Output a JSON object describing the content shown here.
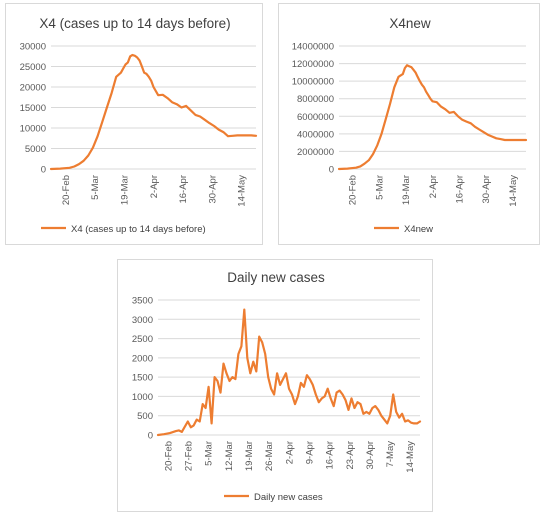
{
  "chart_data": [
    {
      "type": "line",
      "title": "X4 (cases up to 14 days before)",
      "ylim": [
        0,
        30000
      ],
      "yticks": [
        "0",
        "5000",
        "10000",
        "15000",
        "20000",
        "25000",
        "30000"
      ],
      "xtick_labels": [
        "20-Feb",
        "5-Mar",
        "19-Mar",
        "2-Apr",
        "16-Apr",
        "30-Apr",
        "14-May"
      ],
      "xlim": [
        0,
        88
      ],
      "color": "#ED7D31",
      "series": [
        {
          "name": "X4 (cases up to 14 days before)",
          "x": [
            0,
            4,
            8,
            10,
            12,
            14,
            16,
            18,
            20,
            22,
            24,
            26,
            28,
            30,
            31,
            32,
            33,
            34,
            35,
            36,
            37,
            38,
            39,
            40,
            41,
            42,
            43,
            44,
            46,
            48,
            50,
            52,
            54,
            56,
            58,
            60,
            62,
            64,
            66,
            68,
            70,
            72,
            74,
            76,
            78,
            80,
            82,
            84,
            86,
            88
          ],
          "y": [
            0,
            100,
            300,
            600,
            1200,
            2000,
            3300,
            5200,
            8000,
            11500,
            15000,
            18500,
            22500,
            23500,
            24500,
            25500,
            26000,
            27500,
            27800,
            27600,
            27200,
            26500,
            25000,
            23500,
            23200,
            22500,
            21500,
            20000,
            18000,
            18100,
            17300,
            16300,
            15800,
            15000,
            15400,
            14300,
            13200,
            12800,
            12000,
            11200,
            10500,
            9600,
            9000,
            8000,
            8100,
            8200,
            8200,
            8200,
            8200,
            8100
          ]
        }
      ]
    },
    {
      "type": "line",
      "title": "X4new",
      "ylim": [
        0,
        14000000
      ],
      "yticks": [
        "0",
        "2000000",
        "4000000",
        "6000000",
        "8000000",
        "10000000",
        "12000000",
        "14000000"
      ],
      "xtick_labels": [
        "20-Feb",
        "5-Mar",
        "19-Mar",
        "2-Apr",
        "16-Apr",
        "30-Apr",
        "14-May"
      ],
      "xlim": [
        0,
        88
      ],
      "color": "#ED7D31",
      "series": [
        {
          "name": "X4new",
          "x": [
            0,
            4,
            8,
            10,
            12,
            14,
            16,
            18,
            20,
            22,
            24,
            26,
            28,
            30,
            31,
            32,
            33,
            34,
            35,
            36,
            37,
            38,
            39,
            40,
            41,
            42,
            43,
            44,
            46,
            48,
            50,
            52,
            54,
            56,
            58,
            60,
            62,
            64,
            66,
            68,
            70,
            72,
            74,
            76,
            78,
            80,
            82,
            84,
            86,
            88
          ],
          "y": [
            0,
            50000,
            150000,
            300000,
            600000,
            1000000,
            1700000,
            2700000,
            4000000,
            5700000,
            7400000,
            9300000,
            10500000,
            10800000,
            11500000,
            11800000,
            11700000,
            11600000,
            11300000,
            11000000,
            10500000,
            10000000,
            9600000,
            9300000,
            8800000,
            8400000,
            8000000,
            7700000,
            7600000,
            7100000,
            6800000,
            6400000,
            6500000,
            6000000,
            5600000,
            5400000,
            5200000,
            4800000,
            4500000,
            4200000,
            3900000,
            3700000,
            3500000,
            3400000,
            3300000,
            3300000,
            3300000,
            3300000,
            3300000,
            3300000
          ]
        }
      ]
    },
    {
      "type": "line",
      "title": "Daily new cases",
      "ylim": [
        0,
        3500
      ],
      "yticks": [
        "0",
        "500",
        "1000",
        "1500",
        "2000",
        "2500",
        "3000",
        "3500"
      ],
      "xtick_labels": [
        "20-Feb",
        "27-Feb",
        "5-Mar",
        "12-Mar",
        "19-Mar",
        "26-Mar",
        "2-Apr",
        "9-Apr",
        "16-Apr",
        "23-Apr",
        "30-Apr",
        "7-May",
        "14-May"
      ],
      "xlim": [
        0,
        88
      ],
      "color": "#ED7D31",
      "series": [
        {
          "name": "Daily new cases",
          "x": [
            0,
            2,
            4,
            6,
            7,
            8,
            10,
            11,
            12,
            13,
            14,
            15,
            16,
            17,
            18,
            19,
            20,
            21,
            22,
            23,
            24,
            25,
            26,
            27,
            28,
            29,
            30,
            31,
            32,
            33,
            34,
            35,
            36,
            37,
            38,
            39,
            40,
            41,
            42,
            43,
            44,
            45,
            46,
            47,
            48,
            49,
            50,
            51,
            52,
            53,
            54,
            55,
            56,
            57,
            58,
            59,
            60,
            61,
            62,
            63,
            64,
            65,
            66,
            67,
            68,
            69,
            70,
            71,
            72,
            73,
            74,
            75,
            76,
            77,
            78,
            79,
            80,
            81,
            82,
            83,
            84,
            85,
            86,
            87,
            88
          ],
          "y": [
            0,
            20,
            50,
            100,
            120,
            80,
            350,
            200,
            250,
            400,
            350,
            800,
            700,
            1250,
            300,
            1500,
            1400,
            1100,
            1850,
            1600,
            1400,
            1500,
            1450,
            2100,
            2300,
            3250,
            2000,
            1600,
            1900,
            1650,
            2550,
            2400,
            2100,
            1500,
            1200,
            1050,
            1600,
            1300,
            1450,
            1600,
            1200,
            1050,
            800,
            1000,
            1350,
            1250,
            1550,
            1450,
            1300,
            1050,
            850,
            950,
            1000,
            1200,
            950,
            750,
            1100,
            1150,
            1050,
            900,
            650,
            950,
            700,
            850,
            800,
            550,
            600,
            550,
            700,
            750,
            650,
            500,
            400,
            300,
            500,
            1050,
            600,
            450,
            550,
            350,
            380,
            320,
            300,
            300,
            350
          ]
        }
      ]
    }
  ]
}
